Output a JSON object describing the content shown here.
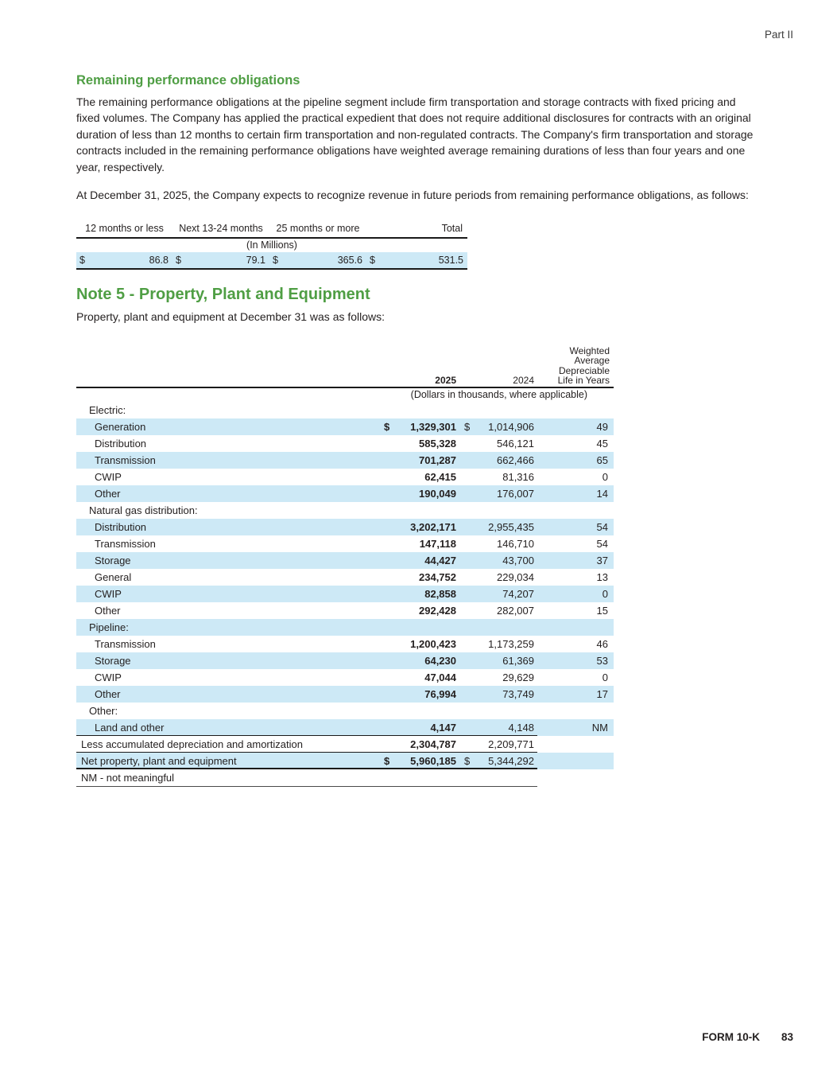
{
  "colors": {
    "heading_green": "#4f9e44",
    "row_shade": "#cde9f6",
    "text": "#231f1f"
  },
  "page": {
    "part_label": "Part II",
    "footer": {
      "form_label": "FORM 10-K",
      "page_number": "83"
    }
  },
  "section_obligations": {
    "heading": "Remaining performance obligations",
    "paragraph1": "The remaining performance obligations at the pipeline segment include firm transportation and storage contracts with fixed pricing and fixed volumes. The Company has applied the practical expedient that does not require additional disclosures for contracts with an original duration of less than 12 months to certain firm transportation and non-regulated contracts. The Company's firm transportation and storage contracts included in the remaining performance obligations have weighted average remaining durations of less than four years and one year, respectively.",
    "paragraph2": "At December 31, 2025, the Company expects to recognize revenue in future periods from remaining performance obligations, as follows:"
  },
  "obligations_table": {
    "units_note": "(In Millions)",
    "columns": [
      {
        "header": "12 months or less",
        "symbol": "$",
        "value": "86.8"
      },
      {
        "header": "Next 13-24 months",
        "symbol": "$",
        "value": "79.1"
      },
      {
        "header": "25 months or more",
        "symbol": "$",
        "value": "365.6"
      },
      {
        "header": "Total",
        "symbol": "$",
        "value": "531.5"
      }
    ]
  },
  "section_ppe": {
    "heading": "Note 5 - Property, Plant and Equipment",
    "paragraph": "Property, plant and equipment at December 31 was as follows:"
  },
  "ppe_table": {
    "col_2025": "2025",
    "col_2024": "2024",
    "col_life": "Weighted\nAverage\nDepreciable\nLife in Years",
    "units_note": "(Dollars in thousands, where applicable)",
    "footnote": "NM - not meaningful",
    "rows": [
      {
        "label": "Electric:",
        "kind": "group"
      },
      {
        "label": "Generation",
        "kind": "item",
        "sym25": "$",
        "v2025": "1,329,301",
        "sym24": "$",
        "v2024": "1,014,906",
        "life": "49"
      },
      {
        "label": "Distribution",
        "kind": "item",
        "v2025": "585,328",
        "v2024": "546,121",
        "life": "45"
      },
      {
        "label": "Transmission",
        "kind": "item",
        "v2025": "701,287",
        "v2024": "662,466",
        "life": "65"
      },
      {
        "label": "CWIP",
        "kind": "item",
        "v2025": "62,415",
        "v2024": "81,316",
        "life": "0"
      },
      {
        "label": "Other",
        "kind": "item",
        "v2025": "190,049",
        "v2024": "176,007",
        "life": "14"
      },
      {
        "label": "Natural gas distribution:",
        "kind": "group"
      },
      {
        "label": "Distribution",
        "kind": "item",
        "v2025": "3,202,171",
        "v2024": "2,955,435",
        "life": "54"
      },
      {
        "label": "Transmission",
        "kind": "item",
        "v2025": "147,118",
        "v2024": "146,710",
        "life": "54"
      },
      {
        "label": "Storage",
        "kind": "item",
        "v2025": "44,427",
        "v2024": "43,700",
        "life": "37"
      },
      {
        "label": "General",
        "kind": "item",
        "v2025": "234,752",
        "v2024": "229,034",
        "life": "13"
      },
      {
        "label": "CWIP",
        "kind": "item",
        "v2025": "82,858",
        "v2024": "74,207",
        "life": "0"
      },
      {
        "label": "Other",
        "kind": "item",
        "v2025": "292,428",
        "v2024": "282,007",
        "life": "15"
      },
      {
        "label": "Pipeline:",
        "kind": "group"
      },
      {
        "label": "Transmission",
        "kind": "item",
        "v2025": "1,200,423",
        "v2024": "1,173,259",
        "life": "46"
      },
      {
        "label": "Storage",
        "kind": "item",
        "v2025": "64,230",
        "v2024": "61,369",
        "life": "53"
      },
      {
        "label": "CWIP",
        "kind": "item",
        "v2025": "47,044",
        "v2024": "29,629",
        "life": "0"
      },
      {
        "label": "Other",
        "kind": "item",
        "v2025": "76,994",
        "v2024": "73,749",
        "life": "17"
      },
      {
        "label": "Other:",
        "kind": "group"
      },
      {
        "label": "Land and other",
        "kind": "item",
        "v2025": "4,147",
        "v2024": "4,148",
        "life": "NM",
        "rule": "thin"
      },
      {
        "label": "Less accumulated depreciation and amortization",
        "kind": "deduct",
        "v2025": "2,304,787",
        "v2024": "2,209,771",
        "rule": "thin"
      },
      {
        "label": "Net property, plant and equipment",
        "kind": "total",
        "sym25": "$",
        "v2025": "5,960,185",
        "sym24": "$",
        "v2024": "5,344,292",
        "rule": "thick"
      }
    ]
  }
}
